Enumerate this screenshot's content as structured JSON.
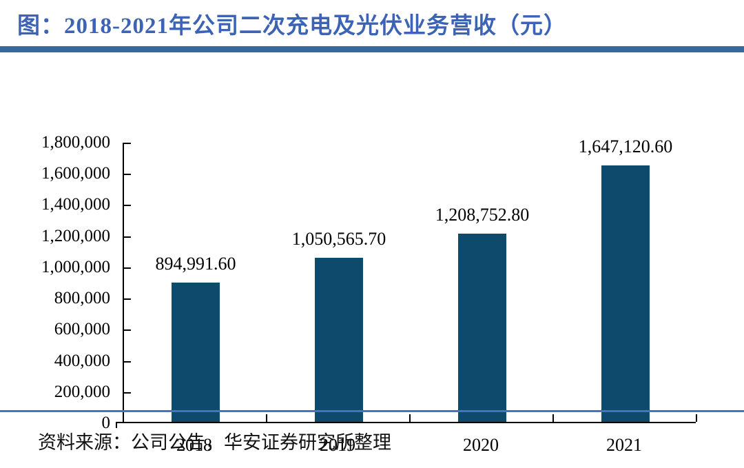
{
  "page": {
    "title": "图：2018-2021年公司二次充电及光伏业务营收（元）",
    "source": "资料来源：公司公告，华安证券研究所整理"
  },
  "colors": {
    "title_blue": "#3d63b4",
    "rule_thick": "#36699e",
    "rule_thin": "#4472c4",
    "bar_fill": "#0e4a6b",
    "axis": "#000000"
  },
  "chart_data": {
    "type": "bar",
    "title": "图：2018-2021年公司二次充电及光伏业务营收（元）",
    "categories": [
      "2018",
      "2019",
      "2020",
      "2021"
    ],
    "values": [
      894991.6,
      1050565.7,
      1208752.8,
      1647120.6
    ],
    "data_labels": [
      "894,991.60",
      "1,050,565.70",
      "1,208,752.80",
      "1,647,120.60"
    ],
    "xlabel": "",
    "ylabel": "",
    "ylim": [
      0,
      1800000
    ],
    "ytick_step": 200000,
    "ytick_labels_top_to_bottom": [
      "1,800,000",
      "1,600,000",
      "1,400,000",
      "1,200,000",
      "1,000,000",
      "800,000",
      "600,000",
      "400,000",
      "200,000",
      "0"
    ],
    "grid": false,
    "legend": "none",
    "bar_color": "#0e4a6b"
  }
}
